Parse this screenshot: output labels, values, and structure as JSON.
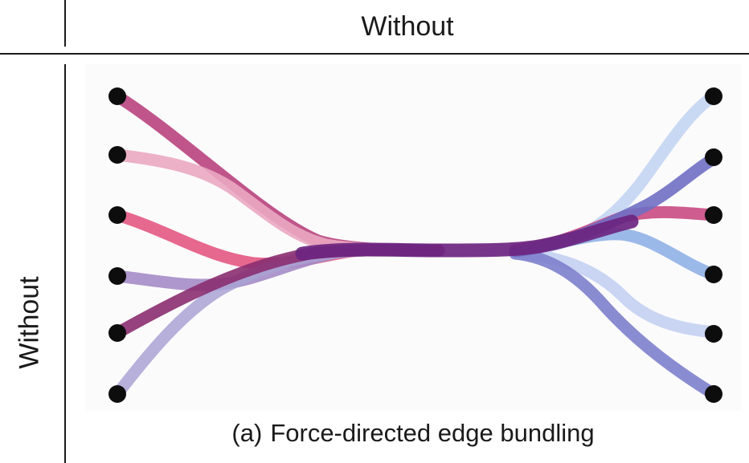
{
  "header": {
    "column_label": "Without",
    "row_label": "Without"
  },
  "figure": {
    "panel_label": "(a)",
    "caption": "Force-directed edge bundling",
    "left_nodes": 6,
    "right_nodes": 6,
    "edges": [
      {
        "from": 1,
        "to": 5,
        "color": "#b8437e"
      },
      {
        "from": 2,
        "to": 3,
        "color": "#eaa9c1"
      },
      {
        "from": 3,
        "to": 4,
        "color": "#e34d7b"
      },
      {
        "from": 4,
        "to": 6,
        "color": "#a58cc6"
      },
      {
        "from": 5,
        "to": 2,
        "color": "#8a2e70"
      },
      {
        "from": 6,
        "to": 1,
        "color": "#a9a2d3"
      }
    ],
    "colors": {
      "node": "#0d0d0d",
      "bundle_core": "#6c2580",
      "right_1": "#c7d7f2",
      "right_2": "#6f6fc4",
      "right_3": "#c94a82",
      "right_4": "#90b1e6",
      "right_5": "#c6d3f1",
      "right_6": "#7d7fcc"
    }
  }
}
